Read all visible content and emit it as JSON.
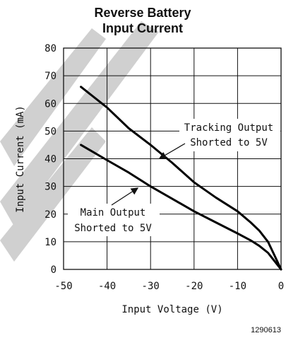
{
  "chart_data": {
    "type": "line",
    "title": [
      "Reverse Battery",
      "Input Current"
    ],
    "xlabel": "Input Voltage (V)",
    "ylabel": "Input Current (mA)",
    "xlim": [
      -50,
      0
    ],
    "ylim": [
      0,
      80
    ],
    "xticks": [
      -50,
      -40,
      -30,
      -20,
      -10,
      0
    ],
    "yticks": [
      0,
      10,
      20,
      30,
      40,
      50,
      60,
      70,
      80
    ],
    "grid": true,
    "series": [
      {
        "name": "Tracking Output Shorted to 5V",
        "x": [
          -46,
          -40,
          -35,
          -30,
          -25,
          -20,
          -15,
          -10,
          -7,
          -5,
          -3,
          -1.5,
          0
        ],
        "y": [
          66,
          58.5,
          51,
          45,
          38.5,
          31.5,
          26,
          21,
          17,
          14,
          10,
          5,
          0
        ]
      },
      {
        "name": "Main Output Shorted to 5V",
        "x": [
          -46,
          -40,
          -35,
          -30,
          -25,
          -20,
          -15,
          -10,
          -7,
          -5,
          -3,
          -1.5,
          0
        ],
        "y": [
          45,
          39.5,
          35,
          30,
          25.5,
          21,
          17,
          13,
          10.5,
          8.5,
          6,
          3,
          0
        ]
      }
    ],
    "annotations": [
      {
        "lines": [
          "Tracking Output",
          "Shorted to 5V"
        ]
      },
      {
        "lines": [
          "Main Output",
          "Shorted to 5V"
        ]
      }
    ],
    "footer_code": "1290613"
  }
}
